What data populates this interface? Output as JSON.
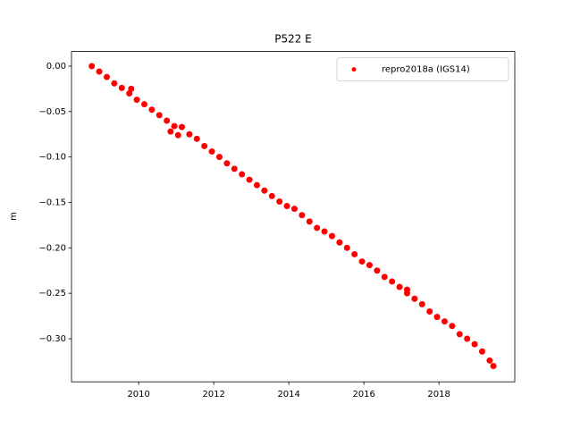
{
  "chart_data": {
    "type": "scatter",
    "title": "P522 E",
    "y_label": "m",
    "x": [
      2008.75,
      2008.95,
      2009.15,
      2009.35,
      2009.55,
      2009.75,
      2009.8,
      2009.95,
      2010.15,
      2010.35,
      2010.55,
      2010.75,
      2010.85,
      2010.95,
      2011.05,
      2011.15,
      2011.35,
      2011.55,
      2011.75,
      2011.95,
      2012.15,
      2012.35,
      2012.55,
      2012.75,
      2012.95,
      2013.15,
      2013.35,
      2013.55,
      2013.75,
      2013.95,
      2014.15,
      2014.35,
      2014.55,
      2014.75,
      2014.95,
      2015.15,
      2015.35,
      2015.55,
      2015.75,
      2015.95,
      2016.15,
      2016.35,
      2016.55,
      2016.75,
      2016.95,
      2017.15,
      2017.15,
      2017.35,
      2017.55,
      2017.75,
      2017.95,
      2018.15,
      2018.35,
      2018.55,
      2018.75,
      2018.95,
      2019.15,
      2019.35,
      2019.45
    ],
    "series": [
      {
        "name": "repro2018a (IGS14)",
        "color": "#ff0000",
        "values": [
          0.0,
          -0.006,
          -0.012,
          -0.019,
          -0.024,
          -0.03,
          -0.025,
          -0.037,
          -0.042,
          -0.048,
          -0.054,
          -0.06,
          -0.072,
          -0.066,
          -0.076,
          -0.067,
          -0.075,
          -0.08,
          -0.088,
          -0.094,
          -0.1,
          -0.107,
          -0.113,
          -0.119,
          -0.125,
          -0.131,
          -0.137,
          -0.143,
          -0.149,
          -0.154,
          -0.157,
          -0.164,
          -0.171,
          -0.178,
          -0.182,
          -0.187,
          -0.194,
          -0.2,
          -0.207,
          -0.215,
          -0.219,
          -0.225,
          -0.232,
          -0.237,
          -0.243,
          -0.25,
          -0.246,
          -0.256,
          -0.262,
          -0.27,
          -0.276,
          -0.281,
          -0.286,
          -0.295,
          -0.3,
          -0.306,
          -0.314,
          -0.324,
          -0.33
        ]
      }
    ],
    "xlim": [
      2008.21,
      2020.02
    ],
    "ylim": [
      -0.3474,
      0.0161
    ],
    "xticks": [
      2010,
      2012,
      2014,
      2016,
      2018
    ],
    "yticks": [
      {
        "value": 0,
        "label": "0.00"
      },
      {
        "value": -0.05,
        "label": "−0.05"
      },
      {
        "value": -0.1,
        "label": "−0.10"
      },
      {
        "value": -0.15,
        "label": "−0.15"
      },
      {
        "value": -0.2,
        "label": "−0.20"
      },
      {
        "value": -0.25,
        "label": "−0.25"
      },
      {
        "value": -0.3,
        "label": "−0.30"
      }
    ],
    "legend": "upper right"
  }
}
